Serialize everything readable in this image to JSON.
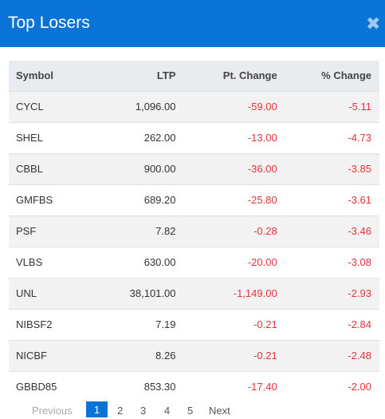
{
  "modal": {
    "title": "Top Losers",
    "close_glyph": "✖"
  },
  "table": {
    "headers": [
      "Symbol",
      "LTP",
      "Pt. Change",
      "% Change"
    ],
    "rows": [
      {
        "symbol": "CYCL",
        "ltp": "1,096.00",
        "pt_change": "-59.00",
        "pct_change": "-5.11"
      },
      {
        "symbol": "SHEL",
        "ltp": "262.00",
        "pt_change": "-13.00",
        "pct_change": "-4.73"
      },
      {
        "symbol": "CBBL",
        "ltp": "900.00",
        "pt_change": "-36.00",
        "pct_change": "-3.85"
      },
      {
        "symbol": "GMFBS",
        "ltp": "689.20",
        "pt_change": "-25.80",
        "pct_change": "-3.61"
      },
      {
        "symbol": "PSF",
        "ltp": "7.82",
        "pt_change": "-0.28",
        "pct_change": "-3.46"
      },
      {
        "symbol": "VLBS",
        "ltp": "630.00",
        "pt_change": "-20.00",
        "pct_change": "-3.08"
      },
      {
        "symbol": "UNL",
        "ltp": "38,101.00",
        "pt_change": "-1,149.00",
        "pct_change": "-2.93"
      },
      {
        "symbol": "NIBSF2",
        "ltp": "7.19",
        "pt_change": "-0.21",
        "pct_change": "-2.84"
      },
      {
        "symbol": "NICBF",
        "ltp": "8.26",
        "pt_change": "-0.21",
        "pct_change": "-2.48"
      },
      {
        "symbol": "GBBD85",
        "ltp": "853.30",
        "pt_change": "-17.40",
        "pct_change": "-2.00"
      }
    ]
  },
  "pagination": {
    "previous": "Previous",
    "pages": [
      "1",
      "2",
      "3",
      "4",
      "5"
    ],
    "active_page": "1",
    "next": "Next"
  },
  "colors": {
    "header_bg": "#0a74d6",
    "negative": "#e5333b",
    "table_head_bg": "#e9ecef"
  }
}
